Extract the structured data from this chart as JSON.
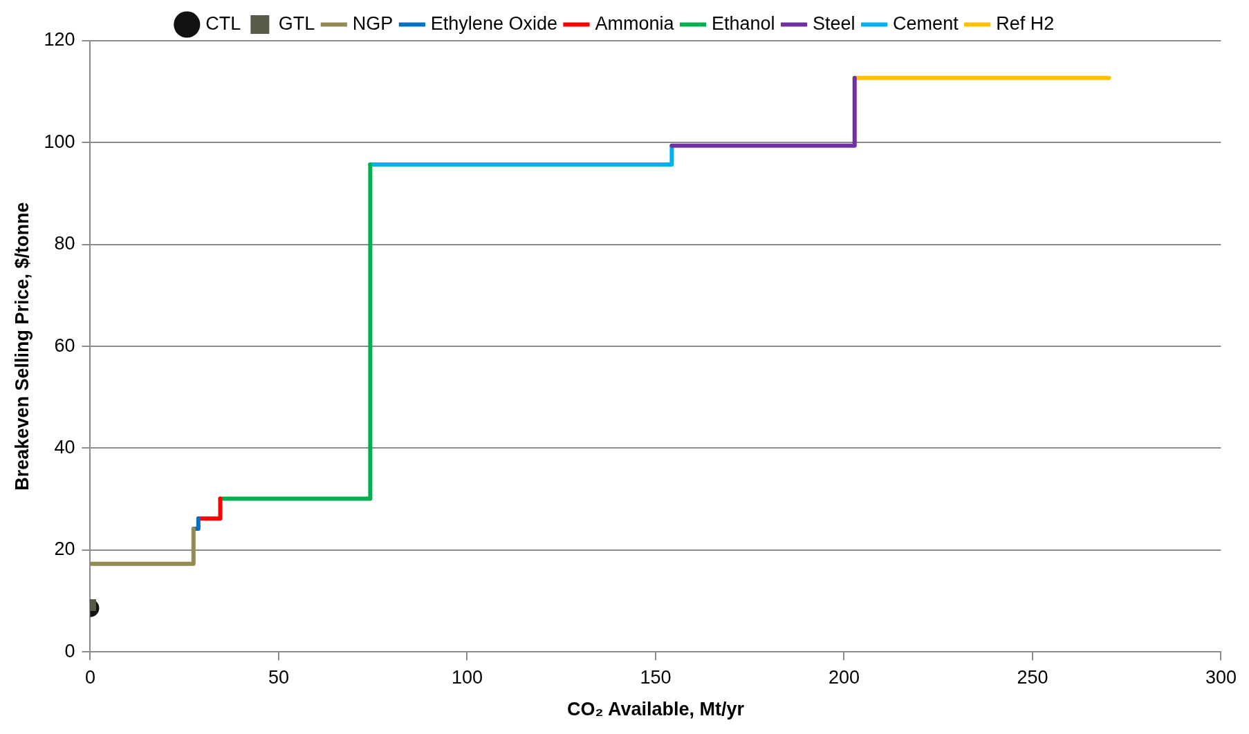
{
  "chart_data": {
    "type": "step",
    "xlabel": "CO₂ Available, Mt/yr",
    "ylabel": "Breakeven Selling Price, $/tonne",
    "xlim": [
      0,
      300
    ],
    "xticks": [
      0,
      50,
      100,
      150,
      200,
      250,
      300
    ],
    "ylim": [
      0,
      120
    ],
    "yticks": [
      0,
      20,
      40,
      60,
      80,
      100,
      120
    ],
    "grid": "y",
    "legend": "top",
    "marker": "none",
    "line_style": "solid",
    "series": [
      {
        "name": "CTL",
        "type": "scatter",
        "marker": "circle",
        "color": "#111111",
        "x": [
          0
        ],
        "values": [
          8.6
        ]
      },
      {
        "name": "GTL",
        "type": "scatter",
        "marker": "square",
        "color": "#585a48",
        "x": [
          0
        ],
        "values": [
          9.2
        ]
      },
      {
        "name": "NGP",
        "color": "#948a54",
        "x": [
          0,
          27.4
        ],
        "values": [
          17.3,
          24.2
        ]
      },
      {
        "name": "Ethylene Oxide",
        "color": "#0070c0",
        "x": [
          27.4,
          28.7
        ],
        "values": [
          24.2,
          26.2
        ]
      },
      {
        "name": "Ammonia",
        "color": "#ff0000",
        "x": [
          28.7,
          34.5
        ],
        "values": [
          26.2,
          30.1
        ]
      },
      {
        "name": "Ethanol",
        "color": "#00b050",
        "x": [
          34.5,
          74.3
        ],
        "values": [
          30.1,
          95.7
        ]
      },
      {
        "name": "Steel",
        "color": "#7030a0",
        "x": [
          154.3,
          202.8
        ],
        "values": [
          99.4,
          112.7
        ]
      },
      {
        "name": "Cement",
        "color": "#00b0f0",
        "x": [
          74.3,
          154.3
        ],
        "values": [
          95.7,
          99.4
        ]
      },
      {
        "name": "Ref H2",
        "color": "#ffc000",
        "x": [
          202.8,
          270.3
        ],
        "values": [
          112.7,
          112.7
        ]
      }
    ]
  }
}
